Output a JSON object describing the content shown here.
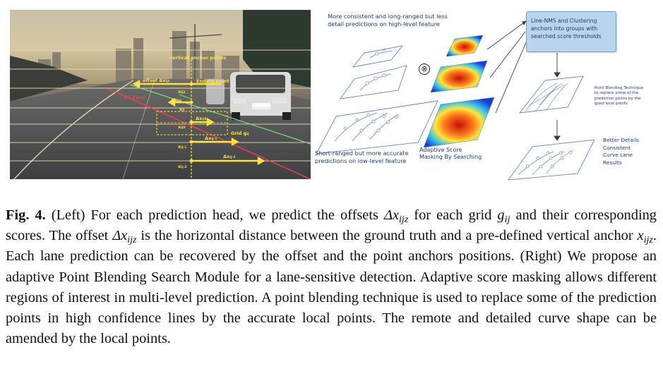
{
  "left_figure": {
    "labels": {
      "vertical_anchor_points": "vertical anchor points",
      "offset": "offset",
      "offset_delta": "Δx",
      "offset_sub": "ijz",
      "ending_point": "Ending point",
      "gt_lane": "GT Lane",
      "grid_label": "Grid g",
      "grid_sub": "ij",
      "dx_i1": "Δx",
      "dx_i1_sub": "ij1",
      "x_ij1": "x",
      "x_ij1_sub": "ij1",
      "x_ij": "x",
      "x_ij_sub": "ij",
      "dx_i0": "Δx",
      "dx_i0_sub": "ij0",
      "x_ij0": "x",
      "x_ij0_sub": "ij0",
      "dx_im1": "Δx",
      "dx_im1_sub": "ij-1",
      "x_ijm1": "x",
      "x_ijm1_sub": "ij-1",
      "dx_im2": "Δx",
      "dx_im2_sub": "ij-2",
      "x_ijm2": "x",
      "x_ijm2_sub": "ij-2"
    },
    "colors": {
      "anchor": "#ffe23a",
      "gt_lane": "#ff3b4e",
      "pred": "#7be27b"
    }
  },
  "right_figure": {
    "top_text": "More consistent and long-ranged but less\ndetail predictions on high-level feature",
    "bottom_left_text": "Short-ranged but more accurate\npredictions on low-level feature",
    "adaptive_text": "Adaptive Score\nMasking By Searching",
    "nms_box_text": "Line-NMS and Clustering\nanchors into groups with\nsearched score thresholds",
    "point_blending_text": "Point Blending Technique\nto replace some of the\nprediction points by the\ngood local points",
    "better_details_text": "Better Details\nConsistent\nCurve Lane\nResults",
    "otimes": "⊗"
  },
  "caption": {
    "fig_label": "Fig. 4.",
    "part1": " (Left) For each prediction head, we predict the offsets ",
    "m1": "Δx",
    "m1_sub": "ijz",
    "part2": " for each grid ",
    "m2": "g",
    "m2_sub": "ij",
    "part3": " and their corresponding scores. The offset ",
    "m3": "Δx",
    "m3_sub": "ijz",
    "part4": " is the horizontal distance between the ground truth and a pre-defined vertical anchor ",
    "m4": "x",
    "m4_sub": "ijz",
    "part5": ". Each lane prediction can be recovered by the offset and the point anchors positions. (Right) We propose an adaptive Point Blending Search Module for a lane-sensitive detection. Adaptive score masking allows different regions of interest in multi-level prediction. A point blending technique is used to replace some of the prediction points in high confidence lines by the accurate local points. The remote and detailed curve shape can be amended by the local points."
  }
}
